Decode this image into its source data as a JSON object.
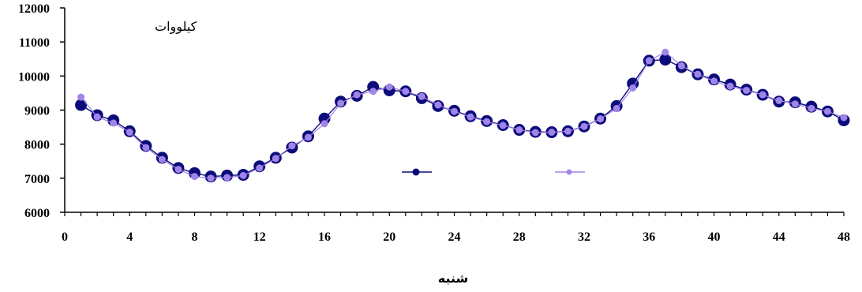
{
  "chart_data": {
    "type": "line",
    "ylabel": "کیلووات",
    "xlabel": "شنبه",
    "xlim": [
      0,
      48
    ],
    "ylim": [
      6000,
      12000
    ],
    "x_ticks": [
      0,
      4,
      8,
      12,
      16,
      20,
      24,
      28,
      32,
      36,
      40,
      44,
      48
    ],
    "y_ticks": [
      6000,
      7000,
      8000,
      9000,
      10000,
      11000,
      12000
    ],
    "x": [
      1,
      2,
      3,
      4,
      5,
      6,
      7,
      8,
      9,
      10,
      11,
      12,
      13,
      14,
      15,
      16,
      17,
      18,
      19,
      20,
      21,
      22,
      23,
      24,
      25,
      26,
      27,
      28,
      29,
      30,
      31,
      32,
      33,
      34,
      35,
      36,
      37,
      38,
      39,
      40,
      41,
      42,
      43,
      44,
      45,
      46,
      47,
      48
    ],
    "series": [
      {
        "color": "#0b0b7a",
        "marker": "large-circle",
        "values": [
          9150,
          8850,
          8700,
          8380,
          7950,
          7600,
          7300,
          7150,
          7050,
          7080,
          7100,
          7350,
          7600,
          7900,
          8230,
          8750,
          9250,
          9420,
          9680,
          9580,
          9550,
          9350,
          9120,
          8980,
          8820,
          8680,
          8560,
          8420,
          8360,
          8350,
          8380,
          8520,
          8750,
          9120,
          9780,
          10450,
          10480,
          10260,
          10050,
          9900,
          9750,
          9600,
          9450,
          9250,
          9230,
          9100,
          8960,
          8700
        ]
      },
      {
        "color": "#a184e8",
        "marker": "small-circle",
        "values": [
          9380,
          8800,
          8620,
          8350,
          7900,
          7550,
          7260,
          7050,
          7000,
          7020,
          7080,
          7300,
          7580,
          7950,
          8200,
          8600,
          9200,
          9450,
          9550,
          9680,
          9550,
          9400,
          9150,
          8960,
          8800,
          8660,
          8550,
          8420,
          8340,
          8350,
          8380,
          8520,
          8740,
          9050,
          9650,
          10450,
          10700,
          10300,
          10050,
          9850,
          9700,
          9580,
          9450,
          9280,
          9180,
          9050,
          8960,
          8780
        ]
      }
    ],
    "grid": false,
    "legend": "center"
  }
}
